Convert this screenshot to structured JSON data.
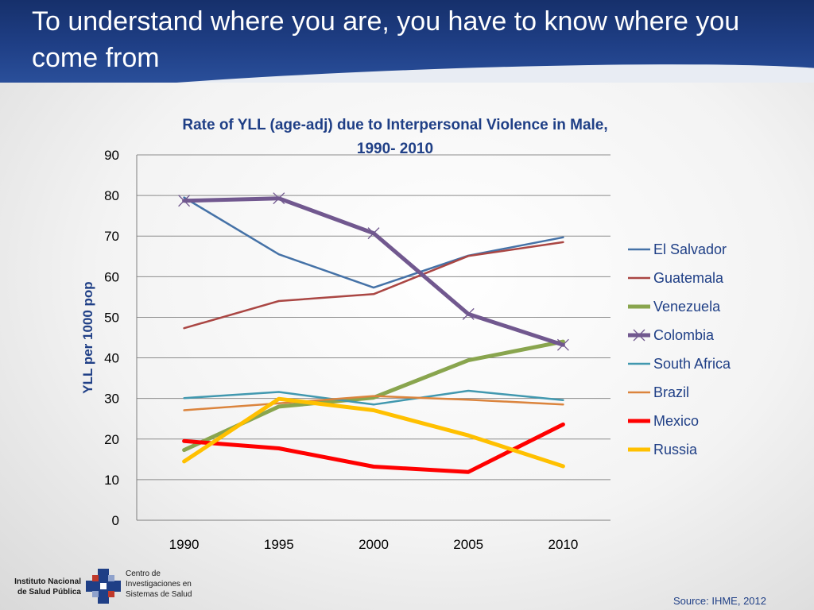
{
  "slide": {
    "title": "To understand where you are, you have to know where you come from",
    "source": "Source: IHME, 2012"
  },
  "footer": {
    "institute_line1": "Instituto Nacional",
    "institute_line2": "de Salud Pública",
    "center_line1": "Centro de",
    "center_line2": "Investigaciones en",
    "center_line3": "Sistemas de Salud"
  },
  "chart_data": {
    "type": "line",
    "title_lines": [
      "Rate of YLL (age-adj) due to Interpersonal Violence in Male,",
      "1990- 2010"
    ],
    "ylabel": "YLL per 1000  pop",
    "xlabel": "",
    "x": [
      "1990",
      "1995",
      "2000",
      "2005",
      "2010"
    ],
    "ylim": [
      0,
      90
    ],
    "yticks": [
      0,
      10,
      20,
      30,
      40,
      50,
      60,
      70,
      80,
      90
    ],
    "grid": true,
    "legend_position": "right",
    "series": [
      {
        "name": "El Salvador",
        "color": "#4572a7",
        "width": "thin",
        "values": [
          79.5,
          65.5,
          57.3,
          65.2,
          69.7
        ]
      },
      {
        "name": "Guatemala",
        "color": "#aa4643",
        "width": "thin",
        "values": [
          47.3,
          54.0,
          55.7,
          65.1,
          68.5
        ]
      },
      {
        "name": "Venezuela",
        "color": "#89a54e",
        "width": "thick",
        "values": [
          17.3,
          28.0,
          30.2,
          39.4,
          44.0
        ]
      },
      {
        "name": "Colombia",
        "color": "#71588f",
        "width": "thick",
        "marker": "x",
        "values": [
          78.7,
          79.3,
          70.7,
          50.8,
          43.2
        ]
      },
      {
        "name": "South Africa",
        "color": "#4198af",
        "width": "thin",
        "values": [
          30.1,
          31.6,
          28.5,
          31.9,
          29.6
        ]
      },
      {
        "name": "Brazil",
        "color": "#db843d",
        "width": "thin",
        "values": [
          27.1,
          28.8,
          30.6,
          29.7,
          28.5
        ]
      },
      {
        "name": "Mexico",
        "color": "#ff0000",
        "width": "thick",
        "values": [
          19.5,
          17.7,
          13.2,
          11.9,
          23.6
        ]
      },
      {
        "name": "Russia",
        "color": "#ffc000",
        "width": "thick",
        "values": [
          14.5,
          29.9,
          27.1,
          20.9,
          13.3
        ]
      }
    ]
  }
}
